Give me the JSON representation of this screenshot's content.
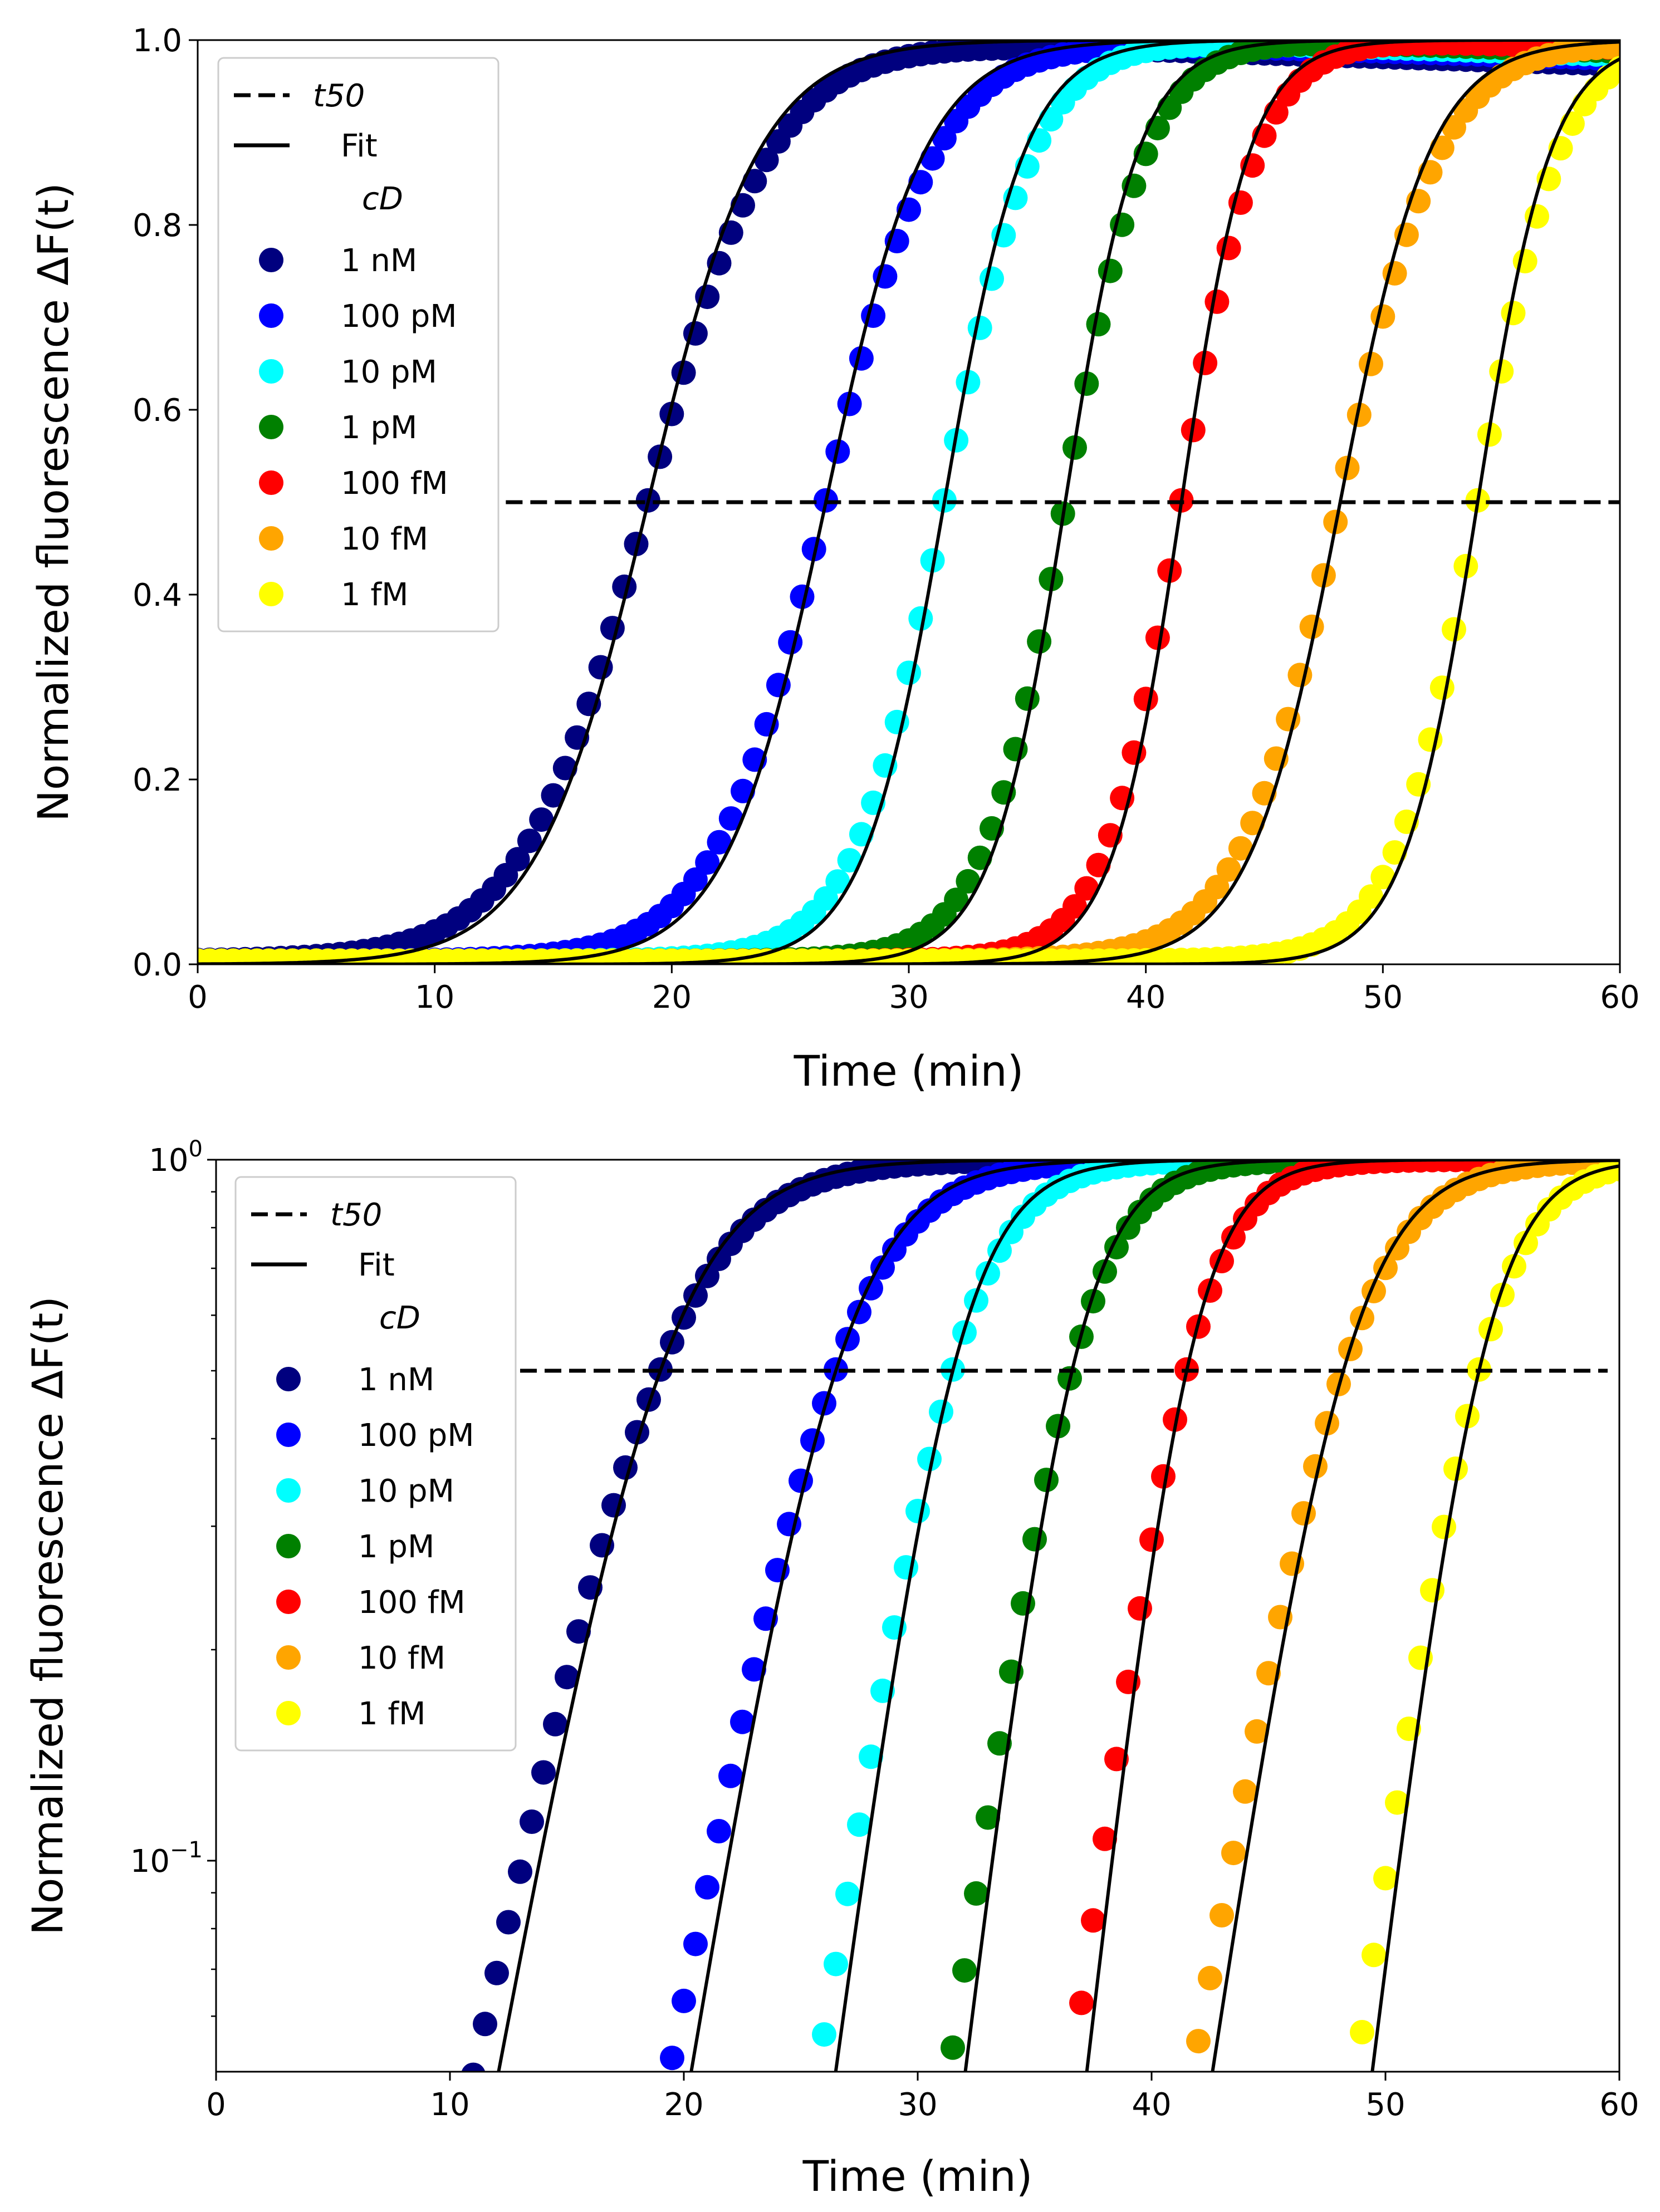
{
  "chart_data": [
    {
      "type": "scatter",
      "panel": "top",
      "yscale": "linear",
      "xlabel": "Time (min)",
      "ylabel": "Normalized fluorescence ΔF(t)",
      "xlim": [
        0,
        60
      ],
      "ylim": [
        0.0,
        1.0
      ],
      "xticks": [
        0,
        10,
        20,
        30,
        40,
        50,
        60
      ],
      "yticks": [
        0.0,
        0.2,
        0.4,
        0.6,
        0.8,
        1.0
      ],
      "xtick_labels": [
        "0",
        "10",
        "20",
        "30",
        "40",
        "50",
        "60"
      ],
      "ytick_labels": [
        "0.0",
        "0.2",
        "0.4",
        "0.6",
        "0.8",
        "1.0"
      ],
      "t50_level": 0.5,
      "t50_x_range": [
        13,
        60
      ],
      "legend_position": "upper-left",
      "legend": {
        "t50_label": "t50",
        "fit_label": "Fit",
        "title": "cD"
      },
      "series": [
        {
          "name": "1 nM",
          "color": "#00007f",
          "t50": 19.0,
          "width": 2.35,
          "x_range": [
            0,
            60
          ]
        },
        {
          "name": "100 pM",
          "color": "#0000ff",
          "t50": 26.5,
          "width": 2.1,
          "x_range": [
            0,
            60
          ]
        },
        {
          "name": "10 pM",
          "color": "#00ffff",
          "t50": 31.5,
          "width": 1.7,
          "x_range": [
            0,
            60
          ]
        },
        {
          "name": "1 pM",
          "color": "#008000",
          "t50": 36.6,
          "width": 1.55,
          "x_range": [
            0,
            60
          ]
        },
        {
          "name": "100 fM",
          "color": "#ff0000",
          "t50": 41.5,
          "width": 1.45,
          "x_range": [
            0,
            60
          ]
        },
        {
          "name": "10 fM",
          "color": "#ffa500",
          "t50": 48.2,
          "width": 1.9,
          "x_range": [
            0,
            60
          ]
        },
        {
          "name": "1 fM",
          "color": "#ffff00",
          "t50": 54.0,
          "width": 1.55,
          "x_range": [
            0,
            60
          ]
        }
      ]
    },
    {
      "type": "scatter",
      "panel": "bottom",
      "yscale": "log",
      "xlabel": "Time (min)",
      "ylabel": "Normalized fluorescence ΔF(t)",
      "xlim": [
        0,
        60
      ],
      "ylim": [
        0.05,
        1.0
      ],
      "xticks": [
        0,
        10,
        20,
        30,
        40,
        50,
        60
      ],
      "xtick_labels": [
        "0",
        "10",
        "20",
        "30",
        "40",
        "50",
        "60"
      ],
      "ytick_major_labels": [
        {
          "value": 1.0,
          "base": "10",
          "exp": "0"
        },
        {
          "value": 0.1,
          "base": "10",
          "exp": "−1"
        }
      ],
      "t50_level": 0.5,
      "t50_x_range": [
        13,
        59.5
      ],
      "legend_position": "upper-left",
      "legend": {
        "t50_label": "t50",
        "fit_label": "Fit",
        "title": "cD"
      },
      "series": [
        {
          "name": "1 nM",
          "color": "#00007f",
          "t50": 19.0,
          "width": 2.35,
          "x_range": [
            9,
            60
          ]
        },
        {
          "name": "100 pM",
          "color": "#0000ff",
          "t50": 26.5,
          "width": 2.1,
          "x_range": [
            18,
            60
          ]
        },
        {
          "name": "10 pM",
          "color": "#00ffff",
          "t50": 31.5,
          "width": 1.7,
          "x_range": [
            24,
            60
          ]
        },
        {
          "name": "1 pM",
          "color": "#008000",
          "t50": 36.6,
          "width": 1.55,
          "x_range": [
            30,
            60
          ]
        },
        {
          "name": "100 fM",
          "color": "#ff0000",
          "t50": 41.5,
          "width": 1.45,
          "x_range": [
            35,
            60
          ]
        },
        {
          "name": "10 fM",
          "color": "#ffa500",
          "t50": 48.2,
          "width": 1.9,
          "x_range": [
            40,
            60
          ]
        },
        {
          "name": "1 fM",
          "color": "#ffff00",
          "t50": 54.0,
          "width": 1.55,
          "x_range": [
            47,
            60
          ]
        }
      ]
    }
  ]
}
